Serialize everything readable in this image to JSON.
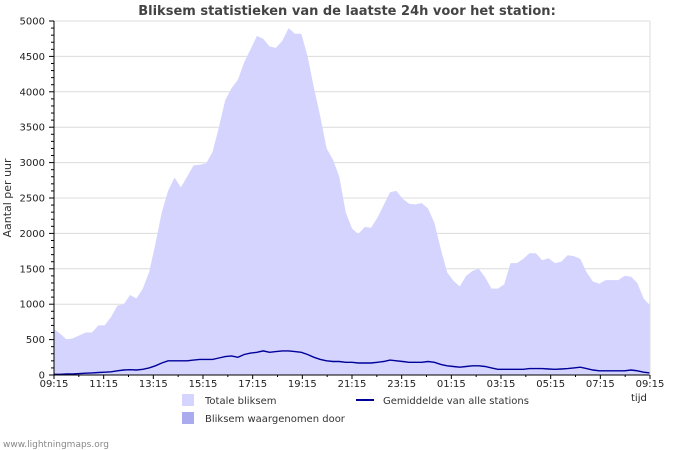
{
  "chart_data": {
    "type": "area",
    "title": "Bliksem statistieken van de laatste 24h voor het station:",
    "ylabel": "Aantal per uur",
    "xlabel": "tijd",
    "ylim": [
      0,
      5000
    ],
    "yticks": [
      0,
      500,
      1000,
      1500,
      2000,
      2500,
      3000,
      3500,
      4000,
      4500,
      5000
    ],
    "xticks": [
      "09:15",
      "11:15",
      "13:15",
      "15:15",
      "17:15",
      "19:15",
      "21:15",
      "23:15",
      "01:15",
      "03:15",
      "05:15",
      "07:15",
      "09:15"
    ],
    "grid": true,
    "colors": {
      "total_fill": "#d4d4ff",
      "detected_fill": "#aaaaee",
      "average_line": "#000099",
      "grid": "#dcdcdc"
    },
    "series": [
      {
        "name": "Totale bliksem",
        "kind": "area",
        "values": [
          650,
          580,
          500,
          520,
          560,
          600,
          600,
          700,
          700,
          820,
          980,
          1000,
          1130,
          1080,
          1220,
          1450,
          1850,
          2300,
          2600,
          2790,
          2650,
          2800,
          2960,
          2970,
          2990,
          3150,
          3500,
          3880,
          4050,
          4170,
          4420,
          4600,
          4790,
          4750,
          4640,
          4620,
          4720,
          4900,
          4820,
          4820,
          4500,
          4050,
          3650,
          3200,
          3040,
          2800,
          2300,
          2070,
          1990,
          2090,
          2080,
          2220,
          2400,
          2580,
          2600,
          2490,
          2420,
          2410,
          2430,
          2350,
          2150,
          1780,
          1450,
          1330,
          1250,
          1400,
          1470,
          1500,
          1380,
          1220,
          1220,
          1280,
          1580,
          1580,
          1640,
          1720,
          1720,
          1620,
          1650,
          1580,
          1600,
          1690,
          1680,
          1640,
          1450,
          1320,
          1290,
          1340,
          1340,
          1340,
          1400,
          1390,
          1300,
          1080,
          980
        ]
      },
      {
        "name": "Bliksem waargenomen door",
        "kind": "area",
        "values": []
      },
      {
        "name": "Gemiddelde van alle stations",
        "kind": "line",
        "values": [
          10,
          10,
          15,
          15,
          20,
          25,
          30,
          35,
          40,
          45,
          60,
          70,
          75,
          70,
          80,
          100,
          130,
          170,
          200,
          200,
          200,
          200,
          210,
          220,
          220,
          220,
          240,
          260,
          270,
          250,
          290,
          310,
          320,
          340,
          320,
          330,
          340,
          340,
          330,
          320,
          290,
          250,
          220,
          200,
          190,
          190,
          180,
          180,
          170,
          170,
          170,
          180,
          190,
          210,
          200,
          190,
          180,
          180,
          180,
          190,
          180,
          150,
          130,
          120,
          110,
          120,
          130,
          130,
          120,
          100,
          80,
          80,
          80,
          80,
          80,
          90,
          90,
          90,
          85,
          80,
          85,
          90,
          100,
          110,
          90,
          70,
          60,
          60,
          60,
          60,
          60,
          70,
          60,
          40,
          30
        ]
      }
    ]
  },
  "legend": {
    "total": "Totale bliksem",
    "detected": "Bliksem waargenomen door",
    "average": "Gemiddelde van alle stations"
  },
  "footer": "www.lightningmaps.org"
}
